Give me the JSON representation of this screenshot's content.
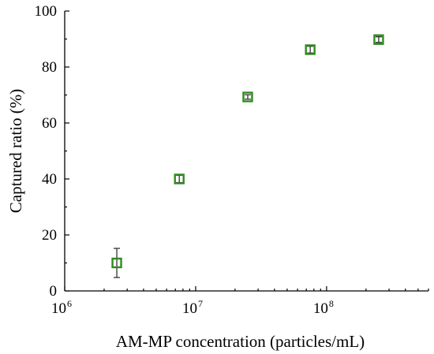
{
  "chart_data": {
    "type": "scatter",
    "title": "",
    "xlabel": "AM-MP concentration (particles/mL)",
    "ylabel": "Captured ratio (%)",
    "xscale": "log",
    "xlim": [
      1000000,
      600000000
    ],
    "ylim": [
      0,
      100
    ],
    "grid": false,
    "legend": "none",
    "y_ticks": [
      "0",
      "20",
      "40",
      "60",
      "80",
      "100"
    ],
    "x_ticks": [
      {
        "value": 1000000,
        "base": "10",
        "exp": "6"
      },
      {
        "value": 10000000,
        "base": "10",
        "exp": "7"
      },
      {
        "value": 100000000,
        "base": "10",
        "exp": "8"
      }
    ],
    "series": [
      {
        "marker": "hollow-square",
        "color": "#2e8b1e",
        "error_color": "#333333",
        "points": [
          {
            "x": 2500000,
            "y": 10.0,
            "err": 5.2
          },
          {
            "x": 7500000,
            "y": 40.0,
            "err": 1.3
          },
          {
            "x": 25000000,
            "y": 69.3,
            "err": 0.8
          },
          {
            "x": 75000000,
            "y": 86.2,
            "err": 1.2
          },
          {
            "x": 250000000,
            "y": 89.8,
            "err": 1.0
          }
        ]
      }
    ]
  }
}
